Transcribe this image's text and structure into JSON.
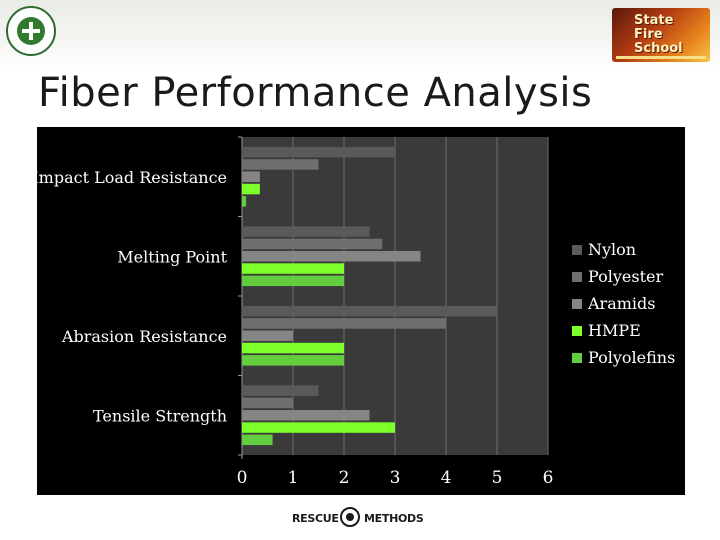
{
  "slide": {
    "title": "Fiber Performance Analysis",
    "footer_logo_left": "RESCUE",
    "footer_logo_right": "METHODS",
    "logo_right_line1": "State",
    "logo_right_line2": "Fire School"
  },
  "colors": {
    "panel_background": "#000000",
    "plot_background": "#3a3a3a",
    "gridline": "#6e6e6e",
    "text": "#ffffff"
  },
  "chart_data": {
    "type": "bar",
    "orientation": "horizontal",
    "title": "",
    "xlabel": "",
    "ylabel": "",
    "categories": [
      "Tensile Strength",
      "Abrasion Resistance",
      "Melting Point",
      "Impact Load Resistance"
    ],
    "xlim": [
      0,
      6
    ],
    "xticks": [
      "0",
      "1",
      "2",
      "3",
      "4",
      "5",
      "6"
    ],
    "grid": true,
    "legend_position": "right",
    "series": [
      {
        "name": "Nylon",
        "color": "#5a5a5a",
        "values": [
          1.5,
          5.0,
          2.5,
          3.0
        ]
      },
      {
        "name": "Polyester",
        "color": "#6f6f6f",
        "values": [
          1.0,
          4.0,
          2.75,
          1.5
        ]
      },
      {
        "name": "Aramids",
        "color": "#858585",
        "values": [
          2.5,
          1.0,
          3.5,
          0.35
        ]
      },
      {
        "name": "HMPE",
        "color": "#7dff2a",
        "values": [
          3.0,
          2.0,
          2.0,
          0.35
        ]
      },
      {
        "name": "Polyolefins",
        "color": "#63cc3f",
        "values": [
          0.6,
          2.0,
          2.0,
          0.08
        ]
      }
    ]
  }
}
